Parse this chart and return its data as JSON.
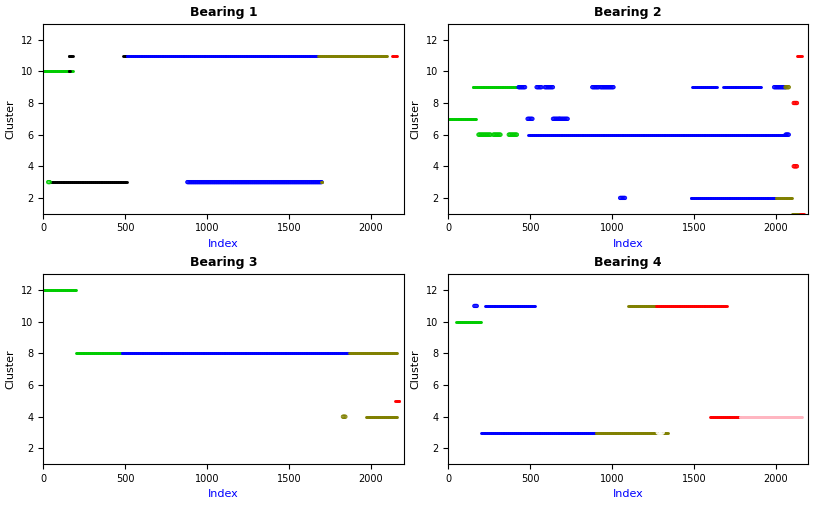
{
  "titles": [
    "Bearing 1",
    "Bearing 2",
    "Bearing 3",
    "Bearing 4"
  ],
  "xlabel": "Index",
  "ylabel": "Cluster",
  "ylim": [
    1,
    13
  ],
  "xlim": [
    0,
    2200
  ],
  "yticks": [
    2,
    4,
    6,
    8,
    10,
    12
  ],
  "xticks": [
    0,
    500,
    1000,
    1500,
    2000
  ],
  "colors": {
    "green": "#00CC00",
    "blue": "#0000FF",
    "black": "#000000",
    "red": "#FF0000",
    "darkyellow": "#808000",
    "pink": "#FFB6C1",
    "white": "#FFFFFF",
    "lightred": "#FF6666"
  },
  "bearings": {
    "1": [
      {
        "cluster": 10,
        "x_start": 1,
        "x_end": 180,
        "color": "green",
        "style": "filled"
      },
      {
        "cluster": 10,
        "x_start": 155,
        "x_end": 165,
        "color": "black",
        "style": "filled"
      },
      {
        "cluster": 11,
        "x_start": 155,
        "x_end": 180,
        "color": "black",
        "style": "filled"
      },
      {
        "cluster": 11,
        "x_start": 490,
        "x_end": 510,
        "color": "black",
        "style": "filled"
      },
      {
        "cluster": 11,
        "x_start": 510,
        "x_end": 1680,
        "color": "blue",
        "style": "filled"
      },
      {
        "cluster": 11,
        "x_start": 1680,
        "x_end": 2100,
        "color": "darkyellow",
        "style": "filled"
      },
      {
        "cluster": 11,
        "x_start": 2130,
        "x_end": 2160,
        "color": "red",
        "style": "filled"
      },
      {
        "cluster": 3,
        "x_start": 50,
        "x_end": 510,
        "color": "black",
        "style": "filled"
      },
      {
        "cluster": 3,
        "x_start": 30,
        "x_end": 40,
        "color": "green",
        "style": "open"
      },
      {
        "cluster": 3,
        "x_start": 880,
        "x_end": 1700,
        "color": "blue",
        "style": "open"
      },
      {
        "cluster": 3,
        "x_start": 1695,
        "x_end": 1705,
        "color": "darkyellow",
        "style": "filled"
      }
    ],
    "2": [
      {
        "cluster": 11,
        "x_start": 2130,
        "x_end": 2160,
        "color": "red",
        "style": "filled"
      },
      {
        "cluster": 8,
        "x_start": 2110,
        "x_end": 2130,
        "color": "red",
        "style": "open"
      },
      {
        "cluster": 9,
        "x_start": 150,
        "x_end": 430,
        "color": "green",
        "style": "filled"
      },
      {
        "cluster": 9,
        "x_start": 430,
        "x_end": 470,
        "color": "blue",
        "style": "open"
      },
      {
        "cluster": 9,
        "x_start": 540,
        "x_end": 570,
        "color": "blue",
        "style": "open"
      },
      {
        "cluster": 9,
        "x_start": 590,
        "x_end": 640,
        "color": "blue",
        "style": "open"
      },
      {
        "cluster": 9,
        "x_start": 880,
        "x_end": 920,
        "color": "blue",
        "style": "open"
      },
      {
        "cluster": 9,
        "x_start": 930,
        "x_end": 1010,
        "color": "blue",
        "style": "open"
      },
      {
        "cluster": 9,
        "x_start": 1490,
        "x_end": 1640,
        "color": "blue",
        "style": "filled"
      },
      {
        "cluster": 9,
        "x_start": 1680,
        "x_end": 1910,
        "color": "blue",
        "style": "filled"
      },
      {
        "cluster": 9,
        "x_start": 1990,
        "x_end": 2060,
        "color": "blue",
        "style": "open"
      },
      {
        "cluster": 9,
        "x_start": 2060,
        "x_end": 2080,
        "color": "darkyellow",
        "style": "open"
      },
      {
        "cluster": 7,
        "x_start": 1,
        "x_end": 170,
        "color": "green",
        "style": "filled"
      },
      {
        "cluster": 7,
        "x_start": 485,
        "x_end": 515,
        "color": "blue",
        "style": "open"
      },
      {
        "cluster": 7,
        "x_start": 640,
        "x_end": 680,
        "color": "blue",
        "style": "open"
      },
      {
        "cluster": 7,
        "x_start": 680,
        "x_end": 730,
        "color": "blue",
        "style": "open"
      },
      {
        "cluster": 6,
        "x_start": 185,
        "x_end": 260,
        "color": "green",
        "style": "open"
      },
      {
        "cluster": 6,
        "x_start": 275,
        "x_end": 320,
        "color": "green",
        "style": "open"
      },
      {
        "cluster": 6,
        "x_start": 370,
        "x_end": 420,
        "color": "green",
        "style": "open"
      },
      {
        "cluster": 6,
        "x_start": 490,
        "x_end": 2060,
        "color": "blue",
        "style": "filled"
      },
      {
        "cluster": 6,
        "x_start": 2060,
        "x_end": 2080,
        "color": "blue",
        "style": "open"
      },
      {
        "cluster": 4,
        "x_start": 2110,
        "x_end": 2130,
        "color": "red",
        "style": "open"
      },
      {
        "cluster": 2,
        "x_start": 1050,
        "x_end": 1080,
        "color": "blue",
        "style": "open"
      },
      {
        "cluster": 2,
        "x_start": 1480,
        "x_end": 2000,
        "color": "blue",
        "style": "filled"
      },
      {
        "cluster": 2,
        "x_start": 2000,
        "x_end": 2100,
        "color": "darkyellow",
        "style": "filled"
      },
      {
        "cluster": 1,
        "x_start": 2100,
        "x_end": 2160,
        "color": "darkyellow",
        "style": "filled"
      },
      {
        "cluster": 1,
        "x_start": 2150,
        "x_end": 2170,
        "color": "red",
        "style": "filled"
      }
    ],
    "3": [
      {
        "cluster": 12,
        "x_start": 1,
        "x_end": 200,
        "color": "green",
        "style": "filled"
      },
      {
        "cluster": 8,
        "x_start": 200,
        "x_end": 480,
        "color": "green",
        "style": "filled"
      },
      {
        "cluster": 8,
        "x_start": 480,
        "x_end": 1870,
        "color": "blue",
        "style": "filled"
      },
      {
        "cluster": 8,
        "x_start": 1870,
        "x_end": 2160,
        "color": "darkyellow",
        "style": "filled"
      },
      {
        "cluster": 5,
        "x_start": 2150,
        "x_end": 2175,
        "color": "red",
        "style": "filled"
      },
      {
        "cluster": 4,
        "x_start": 1830,
        "x_end": 1845,
        "color": "darkyellow",
        "style": "open"
      },
      {
        "cluster": 4,
        "x_start": 1970,
        "x_end": 2160,
        "color": "darkyellow",
        "style": "filled"
      }
    ],
    "4": [
      {
        "cluster": 10,
        "x_start": 50,
        "x_end": 200,
        "color": "green",
        "style": "filled"
      },
      {
        "cluster": 11,
        "x_start": 160,
        "x_end": 175,
        "color": "blue",
        "style": "open"
      },
      {
        "cluster": 11,
        "x_start": 225,
        "x_end": 530,
        "color": "blue",
        "style": "filled"
      },
      {
        "cluster": 11,
        "x_start": 1100,
        "x_end": 1270,
        "color": "darkyellow",
        "style": "filled"
      },
      {
        "cluster": 11,
        "x_start": 1270,
        "x_end": 1700,
        "color": "red",
        "style": "filled"
      },
      {
        "cluster": 3,
        "x_start": 200,
        "x_end": 900,
        "color": "blue",
        "style": "filled"
      },
      {
        "cluster": 3,
        "x_start": 900,
        "x_end": 1340,
        "color": "darkyellow",
        "style": "filled"
      },
      {
        "cluster": 3,
        "x_start": 1280,
        "x_end": 1310,
        "color": "white",
        "style": "open"
      },
      {
        "cluster": 4,
        "x_start": 1600,
        "x_end": 1780,
        "color": "red",
        "style": "filled"
      },
      {
        "cluster": 4,
        "x_start": 1780,
        "x_end": 2160,
        "color": "pink",
        "style": "filled"
      }
    ]
  }
}
